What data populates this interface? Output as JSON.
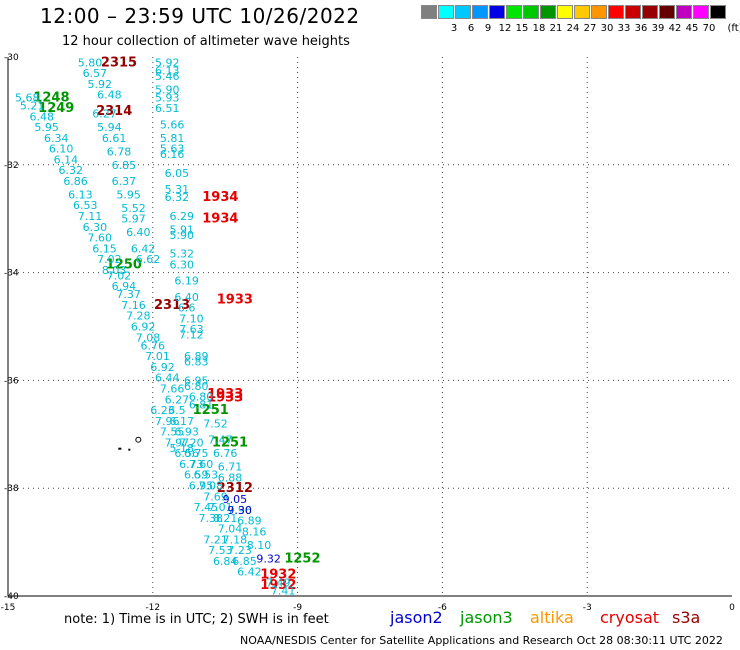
{
  "header": {
    "title": "12:00 – 23:59 UTC 10/26/2022",
    "subtitle": "12 hour collection of altimeter wave heights"
  },
  "color_scale": {
    "unit_label": "(ft)",
    "bins": [
      {
        "label": "",
        "color": "#808080"
      },
      {
        "label": "3",
        "color": "#00ffff"
      },
      {
        "label": "6",
        "color": "#00c8ff"
      },
      {
        "label": "9",
        "color": "#0096ff"
      },
      {
        "label": "12",
        "color": "#0000e6"
      },
      {
        "label": "15",
        "color": "#00e600"
      },
      {
        "label": "18",
        "color": "#00c800"
      },
      {
        "label": "21",
        "color": "#009600"
      },
      {
        "label": "24",
        "color": "#ffff00"
      },
      {
        "label": "27",
        "color": "#ffc800"
      },
      {
        "label": "30",
        "color": "#ff9600"
      },
      {
        "label": "33",
        "color": "#ff0000"
      },
      {
        "label": "36",
        "color": "#c80000"
      },
      {
        "label": "39",
        "color": "#960000"
      },
      {
        "label": "42",
        "color": "#640000"
      },
      {
        "label": "45",
        "color": "#c000c0"
      },
      {
        "label": "70",
        "color": "#ff00ff"
      },
      {
        "label": "",
        "color": "#000000"
      }
    ]
  },
  "footer": {
    "note": "note:  1) Time is in UTC;  2) SWH is in feet",
    "credit": "NOAA/NESDIS Center for Satellite Applications and Research     Oct 28 08:30:11 UTC 2022"
  },
  "legend": [
    {
      "name": "jason2",
      "color": "#0000cc"
    },
    {
      "name": "jason3",
      "color": "#009600"
    },
    {
      "name": "altika",
      "color": "#ff9600"
    },
    {
      "name": "cryosat",
      "color": "#e60000"
    },
    {
      "name": "s3a",
      "color": "#960000"
    }
  ],
  "chart_data": {
    "type": "scatter",
    "title": "12:00 – 23:59 UTC 10/26/2022",
    "xlabel": "",
    "ylabel": "",
    "xlim": [
      -15,
      0
    ],
    "ylim": [
      -40,
      -30
    ],
    "x_ticks": [
      {
        "value": -15,
        "label": "-15"
      },
      {
        "value": -12,
        "label": "-12"
      },
      {
        "value": -9,
        "label": "-9"
      },
      {
        "value": -6,
        "label": "-6"
      },
      {
        "value": -3,
        "label": "-3"
      },
      {
        "value": 0,
        "label": "0"
      }
    ],
    "y_ticks": [
      {
        "value": -30,
        "label": "-30"
      },
      {
        "value": -32,
        "label": "-32"
      },
      {
        "value": -34,
        "label": "-34"
      },
      {
        "value": -36,
        "label": "-36"
      },
      {
        "value": -38,
        "label": "-38"
      },
      {
        "value": -40,
        "label": "-40"
      }
    ],
    "grid": "dotted",
    "island": {
      "lon": -12.3,
      "lat": -37.1
    },
    "series": [
      {
        "name": "cryosat",
        "color": "#e60000",
        "points": [
          {
            "lon": -10.6,
            "lat": -32.6,
            "text": "1934"
          },
          {
            "lon": -10.6,
            "lat": -33.0,
            "text": "1934"
          },
          {
            "lon": -10.3,
            "lat": -34.5,
            "text": "1933"
          },
          {
            "lon": -10.5,
            "lat": -36.25,
            "text": "1933"
          },
          {
            "lon": -10.5,
            "lat": -36.32,
            "text": "1933"
          },
          {
            "lon": -9.4,
            "lat": -39.6,
            "text": "1932"
          },
          {
            "lon": -9.4,
            "lat": -39.8,
            "text": "1932"
          }
        ]
      },
      {
        "name": "s3a",
        "color": "#960000",
        "points": [
          {
            "lon": -12.7,
            "lat": -30.1,
            "text": "2315"
          },
          {
            "lon": -12.8,
            "lat": -31.0,
            "text": "2314"
          },
          {
            "lon": -11.6,
            "lat": -34.6,
            "text": "2313"
          },
          {
            "lon": -10.3,
            "lat": -38.0,
            "text": "2312"
          }
        ]
      },
      {
        "name": "jason3",
        "color": "#009600",
        "points": [
          {
            "lon": -14.1,
            "lat": -30.75,
            "text": "1248"
          },
          {
            "lon": -14.0,
            "lat": -30.95,
            "text": "1249"
          },
          {
            "lon": -12.6,
            "lat": -33.85,
            "text": "1250"
          },
          {
            "lon": -10.8,
            "lat": -36.55,
            "text": "1251"
          },
          {
            "lon": -10.4,
            "lat": -37.15,
            "text": "1251"
          },
          {
            "lon": -8.9,
            "lat": -39.3,
            "text": "1252"
          }
        ]
      },
      {
        "name": "altimeter_swh",
        "color": "#00bcd4",
        "points": [
          {
            "lon": -13.3,
            "lat": -30.1,
            "text": "5.80"
          },
          {
            "lon": -13.2,
            "lat": -30.3,
            "text": "6.57"
          },
          {
            "lon": -13.1,
            "lat": -30.5,
            "text": "5.92"
          },
          {
            "lon": -12.9,
            "lat": -30.7,
            "text": "6.48"
          },
          {
            "lon": -14.6,
            "lat": -30.75,
            "text": "5.68"
          },
          {
            "lon": -14.5,
            "lat": -30.9,
            "text": "5.21"
          },
          {
            "lon": -14.3,
            "lat": -31.1,
            "text": "6.48"
          },
          {
            "lon": -13.0,
            "lat": -31.05,
            "text": "6.27"
          },
          {
            "lon": -14.2,
            "lat": -31.3,
            "text": "5.95"
          },
          {
            "lon": -12.9,
            "lat": -31.3,
            "text": "5.94"
          },
          {
            "lon": -14.0,
            "lat": -31.5,
            "text": "6.34"
          },
          {
            "lon": -12.8,
            "lat": -31.5,
            "text": "6.61"
          },
          {
            "lon": -13.9,
            "lat": -31.7,
            "text": "6.10"
          },
          {
            "lon": -12.7,
            "lat": -31.75,
            "text": "6.78"
          },
          {
            "lon": -13.8,
            "lat": -31.9,
            "text": "6.14"
          },
          {
            "lon": -12.6,
            "lat": -32.0,
            "text": "6.85"
          },
          {
            "lon": -13.7,
            "lat": -32.1,
            "text": "6.32"
          },
          {
            "lon": -12.6,
            "lat": -32.3,
            "text": "6.37"
          },
          {
            "lon": -13.6,
            "lat": -32.3,
            "text": "6.86"
          },
          {
            "lon": -13.5,
            "lat": -32.55,
            "text": "6.13"
          },
          {
            "lon": -12.5,
            "lat": -32.55,
            "text": "5.95"
          },
          {
            "lon": -13.4,
            "lat": -32.75,
            "text": "6.53"
          },
          {
            "lon": -12.4,
            "lat": -32.8,
            "text": "5.52"
          },
          {
            "lon": -13.3,
            "lat": -32.95,
            "text": "7.11"
          },
          {
            "lon": -12.4,
            "lat": -33.0,
            "text": "5.97"
          },
          {
            "lon": -13.2,
            "lat": -33.15,
            "text": "6.30"
          },
          {
            "lon": -12.3,
            "lat": -33.25,
            "text": "6.40"
          },
          {
            "lon": -13.1,
            "lat": -33.35,
            "text": "7.60"
          },
          {
            "lon": -13.0,
            "lat": -33.55,
            "text": "6.15"
          },
          {
            "lon": -12.2,
            "lat": -33.55,
            "text": "6.42"
          },
          {
            "lon": -12.9,
            "lat": -33.75,
            "text": "7.02"
          },
          {
            "lon": -12.1,
            "lat": -33.75,
            "text": "6.62"
          },
          {
            "lon": -12.8,
            "lat": -33.95,
            "text": "8.03"
          },
          {
            "lon": -12.7,
            "lat": -34.05,
            "text": "7.02"
          },
          {
            "lon": -12.6,
            "lat": -34.25,
            "text": "6.94"
          },
          {
            "lon": -12.5,
            "lat": -34.4,
            "text": "7.37"
          },
          {
            "lon": -12.4,
            "lat": -34.6,
            "text": "7.16"
          },
          {
            "lon": -12.3,
            "lat": -34.8,
            "text": "7.28"
          },
          {
            "lon": -12.2,
            "lat": -35.0,
            "text": "6.92"
          },
          {
            "lon": -12.1,
            "lat": -35.2,
            "text": "7.08"
          },
          {
            "lon": -12.0,
            "lat": -35.35,
            "text": "6.76"
          },
          {
            "lon": -11.9,
            "lat": -35.55,
            "text": "7.01"
          },
          {
            "lon": -11.8,
            "lat": -35.75,
            "text": "6.92"
          },
          {
            "lon": -11.7,
            "lat": -35.95,
            "text": "6.44"
          },
          {
            "lon": -11.6,
            "lat": -36.15,
            "text": "7.66"
          },
          {
            "lon": -11.5,
            "lat": -36.35,
            "text": "6.27"
          },
          {
            "lon": -11.5,
            "lat": -36.55,
            "text": "6.5"
          },
          {
            "lon": -11.4,
            "lat": -36.75,
            "text": "6.17"
          },
          {
            "lon": -11.3,
            "lat": -36.95,
            "text": "6.93"
          },
          {
            "lon": -11.2,
            "lat": -37.15,
            "text": "7.20"
          },
          {
            "lon": -11.1,
            "lat": -37.35,
            "text": "6.75"
          },
          {
            "lon": -11.0,
            "lat": -37.55,
            "text": "7.60"
          },
          {
            "lon": -10.9,
            "lat": -37.75,
            "text": "6.53"
          },
          {
            "lon": -10.8,
            "lat": -37.95,
            "text": "7.08"
          },
          {
            "lon": -10.7,
            "lat": -38.15,
            "text": "7.69"
          },
          {
            "lon": -10.6,
            "lat": -38.35,
            "text": "7.01"
          },
          {
            "lon": -10.5,
            "lat": -38.55,
            "text": "8.21"
          },
          {
            "lon": -10.4,
            "lat": -38.75,
            "text": "7.04"
          },
          {
            "lon": -10.3,
            "lat": -38.95,
            "text": "7.18"
          },
          {
            "lon": -10.2,
            "lat": -39.15,
            "text": "7.23"
          },
          {
            "lon": -10.1,
            "lat": -39.35,
            "text": "6.85"
          },
          {
            "lon": -10.0,
            "lat": -39.55,
            "text": "6.42"
          },
          {
            "lon": -11.7,
            "lat": -30.1,
            "text": "5.92"
          },
          {
            "lon": -11.7,
            "lat": -30.25,
            "text": "6.13"
          },
          {
            "lon": -11.7,
            "lat": -30.35,
            "text": "5.46"
          },
          {
            "lon": -11.7,
            "lat": -30.6,
            "text": "5.90"
          },
          {
            "lon": -11.7,
            "lat": -30.75,
            "text": "5.93"
          },
          {
            "lon": -11.7,
            "lat": -30.95,
            "text": "6.51"
          },
          {
            "lon": -11.6,
            "lat": -31.25,
            "text": "5.66"
          },
          {
            "lon": -11.6,
            "lat": -31.5,
            "text": "5.81"
          },
          {
            "lon": -11.6,
            "lat": -31.7,
            "text": "5.63"
          },
          {
            "lon": -11.6,
            "lat": -31.8,
            "text": "6.16"
          },
          {
            "lon": -11.5,
            "lat": -32.15,
            "text": "6.05"
          },
          {
            "lon": -11.5,
            "lat": -32.45,
            "text": "5.31"
          },
          {
            "lon": -11.5,
            "lat": -32.6,
            "text": "6.32"
          },
          {
            "lon": -11.4,
            "lat": -32.95,
            "text": "6.29"
          },
          {
            "lon": -11.4,
            "lat": -33.2,
            "text": "5.91"
          },
          {
            "lon": -11.4,
            "lat": -33.3,
            "text": "5.90"
          },
          {
            "lon": -11.4,
            "lat": -33.65,
            "text": "5.32"
          },
          {
            "lon": -11.4,
            "lat": -33.85,
            "text": "6.30"
          },
          {
            "lon": -11.3,
            "lat": -34.15,
            "text": "6.19"
          },
          {
            "lon": -11.3,
            "lat": -34.45,
            "text": "6.40"
          },
          {
            "lon": -11.3,
            "lat": -34.65,
            "text": "6.6"
          },
          {
            "lon": -11.2,
            "lat": -34.85,
            "text": "7.10"
          },
          {
            "lon": -11.2,
            "lat": -35.05,
            "text": "7.63"
          },
          {
            "lon": -11.2,
            "lat": -35.15,
            "text": "7.12"
          },
          {
            "lon": -11.1,
            "lat": -35.55,
            "text": "6.89"
          },
          {
            "lon": -11.1,
            "lat": -35.65,
            "text": "6.83"
          },
          {
            "lon": -11.1,
            "lat": -36.0,
            "text": "6.95"
          },
          {
            "lon": -11.1,
            "lat": -36.1,
            "text": "6.80"
          },
          {
            "lon": -11.0,
            "lat": -36.3,
            "text": "6.80"
          },
          {
            "lon": -11.0,
            "lat": -36.45,
            "text": "6.81"
          },
          {
            "lon": -11.8,
            "lat": -36.55,
            "text": "6.23"
          },
          {
            "lon": -11.7,
            "lat": -36.75,
            "text": "7.96"
          },
          {
            "lon": -11.6,
            "lat": -36.95,
            "text": "7.55"
          },
          {
            "lon": -11.5,
            "lat": -37.15,
            "text": "7.97"
          },
          {
            "lon": -11.4,
            "lat": -37.25,
            "text": "5.18"
          },
          {
            "lon": -11.3,
            "lat": -37.35,
            "text": "6.56"
          },
          {
            "lon": -11.2,
            "lat": -37.55,
            "text": "6.73"
          },
          {
            "lon": -11.1,
            "lat": -37.75,
            "text": "6.59"
          },
          {
            "lon": -11.0,
            "lat": -37.95,
            "text": "6.95"
          },
          {
            "lon": -10.9,
            "lat": -38.35,
            "text": "7.45"
          },
          {
            "lon": -10.8,
            "lat": -38.55,
            "text": "7.38"
          },
          {
            "lon": -10.7,
            "lat": -38.95,
            "text": "7.21"
          },
          {
            "lon": -10.6,
            "lat": -39.15,
            "text": "7.53"
          },
          {
            "lon": -10.5,
            "lat": -39.35,
            "text": "6.84"
          },
          {
            "lon": -10.7,
            "lat": -36.8,
            "text": "7.52"
          },
          {
            "lon": -10.6,
            "lat": -37.1,
            "text": "7.47"
          },
          {
            "lon": -10.5,
            "lat": -37.35,
            "text": "6.76"
          },
          {
            "lon": -10.4,
            "lat": -37.6,
            "text": "6.71"
          },
          {
            "lon": -10.4,
            "lat": -37.8,
            "text": "6.88"
          },
          {
            "lon": -10.2,
            "lat": -38.4,
            "text": "7.96"
          },
          {
            "lon": -10.0,
            "lat": -38.6,
            "text": "6.89"
          },
          {
            "lon": -9.9,
            "lat": -38.8,
            "text": "8.16"
          },
          {
            "lon": -9.8,
            "lat": -39.05,
            "text": "8.10"
          },
          {
            "lon": -9.4,
            "lat": -39.75,
            "text": "7.49"
          },
          {
            "lon": -9.3,
            "lat": -39.9,
            "text": "7.41"
          }
        ]
      },
      {
        "name": "jason2",
        "color": "#0000cc",
        "points": [
          {
            "lon": -10.3,
            "lat": -38.2,
            "text": "9.05"
          },
          {
            "lon": -10.2,
            "lat": -38.4,
            "text": "9.30"
          },
          {
            "lon": -9.6,
            "lat": -39.3,
            "text": "9.32"
          }
        ]
      }
    ]
  }
}
